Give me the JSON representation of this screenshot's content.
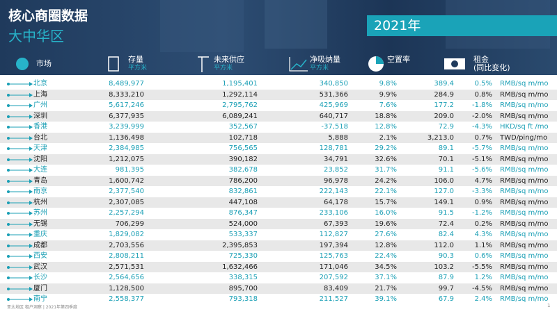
{
  "header": {
    "title": "核心商圈数据",
    "subtitle": "大中华区",
    "year": "2021年"
  },
  "table": {
    "headers": [
      {
        "label": "市场"
      },
      {
        "label": "存量",
        "unit": "平方米"
      },
      {
        "label": "未来供应",
        "unit": "平方米"
      },
      {
        "label": "净吸纳量",
        "unit": "平方米"
      },
      {
        "label": "空置率"
      },
      {
        "label": "租金",
        "unit": "(同比变化)"
      }
    ],
    "rows": [
      [
        "北京",
        "8,489,977",
        "1,195,401",
        "340,850",
        "9.8%",
        "389.4",
        "0.5%",
        "RMB/sq m/mo"
      ],
      [
        "上海",
        "8,333,210",
        "1,292,114",
        "531,366",
        "9.9%",
        "284.9",
        "0.8%",
        "RMB/sq m/mo"
      ],
      [
        "广州",
        "5,617,246",
        "2,795,762",
        "425,969",
        "7.6%",
        "177.2",
        "-1.8%",
        "RMB/sq m/mo"
      ],
      [
        "深圳",
        "6,377,935",
        "6,089,241",
        "640,717",
        "18.8%",
        "209.0",
        "-2.0%",
        "RMB/sq m/mo"
      ],
      [
        "香港",
        "3,239,999",
        "352,567",
        "-37,518",
        "12.8%",
        "72.9",
        "-4.3%",
        "HKD/sq ft /mo"
      ],
      [
        "台北",
        "1,136,498",
        "102,718",
        "5,888",
        "2.1%",
        "3,213.0",
        "0.7%",
        "TWD/ping/mo"
      ],
      [
        "天津",
        "2,384,985",
        "756,565",
        "128,781",
        "29.2%",
        "89.1",
        "-5.7%",
        "RMB/sq m/mo"
      ],
      [
        "沈阳",
        "1,212,075",
        "390,182",
        "34,791",
        "32.6%",
        "70.1",
        "-5.1%",
        "RMB/sq m/mo"
      ],
      [
        "大连",
        "981,395",
        "382,678",
        "23,852",
        "31.7%",
        "91.1",
        "-5.6%",
        "RMB/sq m/mo"
      ],
      [
        "青岛",
        "1,600,742",
        "786,200",
        "96,978",
        "24.2%",
        "106.0",
        "4.7%",
        "RMB/sq m/mo"
      ],
      [
        "南京",
        "2,377,540",
        "832,861",
        "222,143",
        "22.1%",
        "127.0",
        "-3.3%",
        "RMB/sq m/mo"
      ],
      [
        "杭州",
        "2,307,085",
        "447,108",
        "64,178",
        "15.7%",
        "149.1",
        "0.9%",
        "RMB/sq m/mo"
      ],
      [
        "苏州",
        "2,257,294",
        "876,347",
        "233,106",
        "16.0%",
        "91.5",
        "-1.2%",
        "RMB/sq m/mo"
      ],
      [
        "无锡",
        "706,299",
        "524,000",
        "67,393",
        "19.6%",
        "72.4",
        "0.2%",
        "RMB/sq m/mo"
      ],
      [
        "重庆",
        "1,829,082",
        "533,337",
        "112,827",
        "27.6%",
        "82.4",
        "4.3%",
        "RMB/sq m/mo"
      ],
      [
        "成都",
        "2,703,556",
        "2,395,853",
        "197,394",
        "12.8%",
        "112.0",
        "1.1%",
        "RMB/sq m/mo"
      ],
      [
        "西安",
        "2,808,211",
        "725,330",
        "125,763",
        "22.4%",
        "90.3",
        "0.6%",
        "RMB/sq m/mo"
      ],
      [
        "武汉",
        "2,571,531",
        "1,632,466",
        "171,046",
        "34.5%",
        "103.2",
        "-5.5%",
        "RMB/sq m/mo"
      ],
      [
        "长沙",
        "2,564,656",
        "338,315",
        "207,592",
        "37.1%",
        "87.9",
        "1.2%",
        "RMB/sq m/mo"
      ],
      [
        "厦门",
        "1,128,500",
        "895,700",
        "83,409",
        "21.7%",
        "99.7",
        "-4.5%",
        "RMB/sq m/mo"
      ],
      [
        "南宁",
        "2,558,377",
        "793,318",
        "211,527",
        "39.1%",
        "67.9",
        "2.4%",
        "RMB/sq m/mo"
      ]
    ]
  },
  "footer": {
    "text": "亚太地区 租户洞察 | 2021年第四季度",
    "page": "1"
  }
}
